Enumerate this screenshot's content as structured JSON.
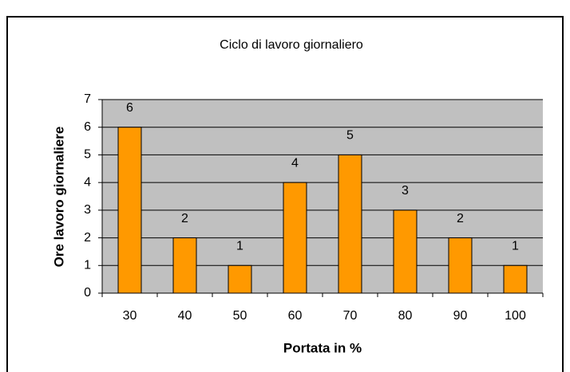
{
  "chart_data": {
    "type": "bar",
    "title": "Ciclo di lavoro giornaliero",
    "x_label": "Portata in %",
    "y_label": "Ore lavoro giornaliere",
    "categories": [
      "30",
      "40",
      "50",
      "60",
      "70",
      "80",
      "90",
      "100"
    ],
    "values": [
      6,
      2,
      1,
      4,
      5,
      3,
      2,
      1
    ],
    "color": "#ff9900",
    "plot_background": "#c0c0c0",
    "ylim": [
      0,
      7
    ],
    "yticks": [
      0,
      1,
      2,
      3,
      4,
      5,
      6,
      7
    ],
    "grid": true
  }
}
